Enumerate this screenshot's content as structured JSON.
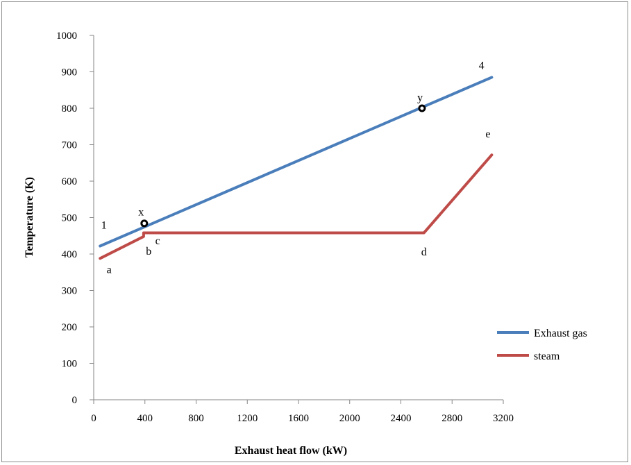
{
  "chart_data": {
    "type": "line",
    "xlabel": "Exhaust heat flow (kW)",
    "ylabel": "Temperature (K)",
    "xlim": [
      0,
      3200
    ],
    "ylim": [
      0,
      1000
    ],
    "x_ticks": [
      0,
      400,
      800,
      1200,
      1600,
      2000,
      2400,
      2800,
      3200
    ],
    "y_ticks": [
      0,
      100,
      200,
      300,
      400,
      500,
      600,
      700,
      800,
      900,
      1000
    ],
    "grid": false,
    "legend_position": "right",
    "series": [
      {
        "name": "Exhaust gas",
        "color": "#4a7ebb",
        "points": [
          [
            50,
            422
          ],
          [
            3110,
            885
          ]
        ]
      },
      {
        "name": "steam",
        "color": "#be4b48",
        "points": [
          [
            50,
            388
          ],
          [
            390,
            448
          ],
          [
            390,
            458
          ],
          [
            2580,
            458
          ],
          [
            3110,
            672
          ]
        ]
      }
    ],
    "markers": [
      {
        "label": "x",
        "x": 395,
        "y": 484
      },
      {
        "label": "y",
        "x": 2565,
        "y": 800
      }
    ],
    "annotations": [
      {
        "text": "1",
        "x": 80,
        "y": 470
      },
      {
        "text": "a",
        "x": 120,
        "y": 348
      },
      {
        "text": "b",
        "x": 430,
        "y": 398
      },
      {
        "text": "c",
        "x": 500,
        "y": 427
      },
      {
        "text": "d",
        "x": 2580,
        "y": 396
      },
      {
        "text": "e",
        "x": 3080,
        "y": 720
      },
      {
        "text": "4",
        "x": 3030,
        "y": 908
      },
      {
        "text": "x",
        "x": 370,
        "y": 506
      },
      {
        "text": "y",
        "x": 2550,
        "y": 820
      }
    ]
  }
}
